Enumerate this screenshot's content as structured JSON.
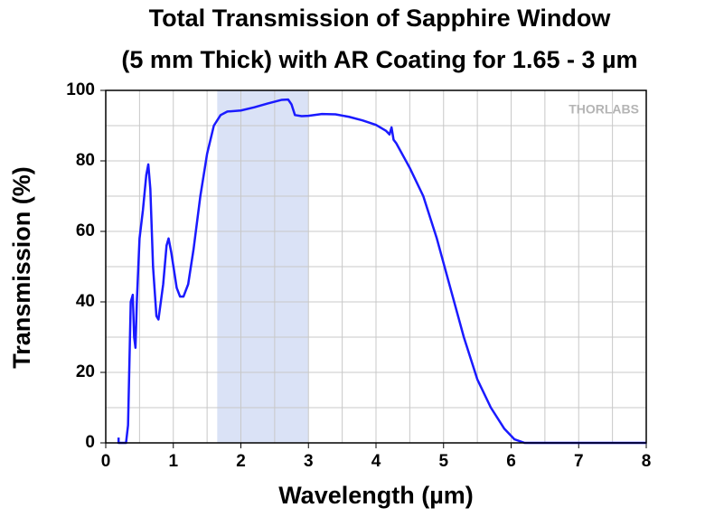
{
  "chart_data": {
    "type": "line",
    "title": [
      "Total Transmission of Sapphire Window",
      "(5 mm Thick) with AR Coating for 1.65 - 3 µm"
    ],
    "xlabel": "Wavelength (µm)",
    "ylabel": "Transmission (%)",
    "watermark": "THORLABS",
    "xlim": [
      0,
      8
    ],
    "ylim": [
      0,
      100
    ],
    "xticks": [
      0,
      1,
      2,
      3,
      4,
      5,
      6,
      7,
      8
    ],
    "yticks": [
      0,
      20,
      40,
      60,
      80,
      100
    ],
    "xminorticks": [
      0.5,
      1.5,
      2.5,
      3.5,
      4.5,
      5.5,
      6.5,
      7.5
    ],
    "yminorticks": [
      10,
      30,
      50,
      70,
      90
    ],
    "grid": true,
    "highlight": {
      "xlim": [
        1.65,
        3
      ],
      "color": "#dae2f6"
    },
    "series": [
      {
        "name": "Transmission",
        "color": "#1a1aff",
        "x": [
          0.19,
          0.19,
          0.2,
          0.3,
          0.33,
          0.37,
          0.4,
          0.42,
          0.44,
          0.46,
          0.5,
          0.55,
          0.6,
          0.63,
          0.66,
          0.7,
          0.75,
          0.78,
          0.85,
          0.9,
          0.93,
          0.97,
          1.05,
          1.1,
          1.15,
          1.22,
          1.3,
          1.4,
          1.5,
          1.6,
          1.7,
          1.8,
          2.0,
          2.2,
          2.4,
          2.6,
          2.7,
          2.75,
          2.8,
          2.9,
          3.0,
          3.2,
          3.4,
          3.6,
          3.8,
          4.0,
          4.15,
          4.2,
          4.23,
          4.26,
          4.3,
          4.5,
          4.7,
          4.9,
          5.1,
          5.3,
          5.5,
          5.7,
          5.9,
          6.05,
          6.2,
          7,
          8
        ],
        "values": [
          1.5,
          0,
          0,
          0,
          5,
          40,
          42,
          30,
          27,
          40,
          58,
          66,
          76,
          79,
          72,
          50,
          36,
          35,
          45,
          56,
          58,
          54,
          44,
          41.5,
          41.5,
          45,
          55,
          70,
          82,
          90,
          93,
          94,
          94.3,
          95.2,
          96.3,
          97.3,
          97.4,
          96,
          93,
          92.7,
          92.8,
          93.3,
          93.2,
          92.5,
          91.5,
          90.2,
          88.5,
          87.5,
          89.5,
          86,
          85,
          78,
          70,
          58,
          44,
          30,
          18,
          10,
          4,
          1,
          0,
          0,
          0
        ]
      }
    ]
  }
}
